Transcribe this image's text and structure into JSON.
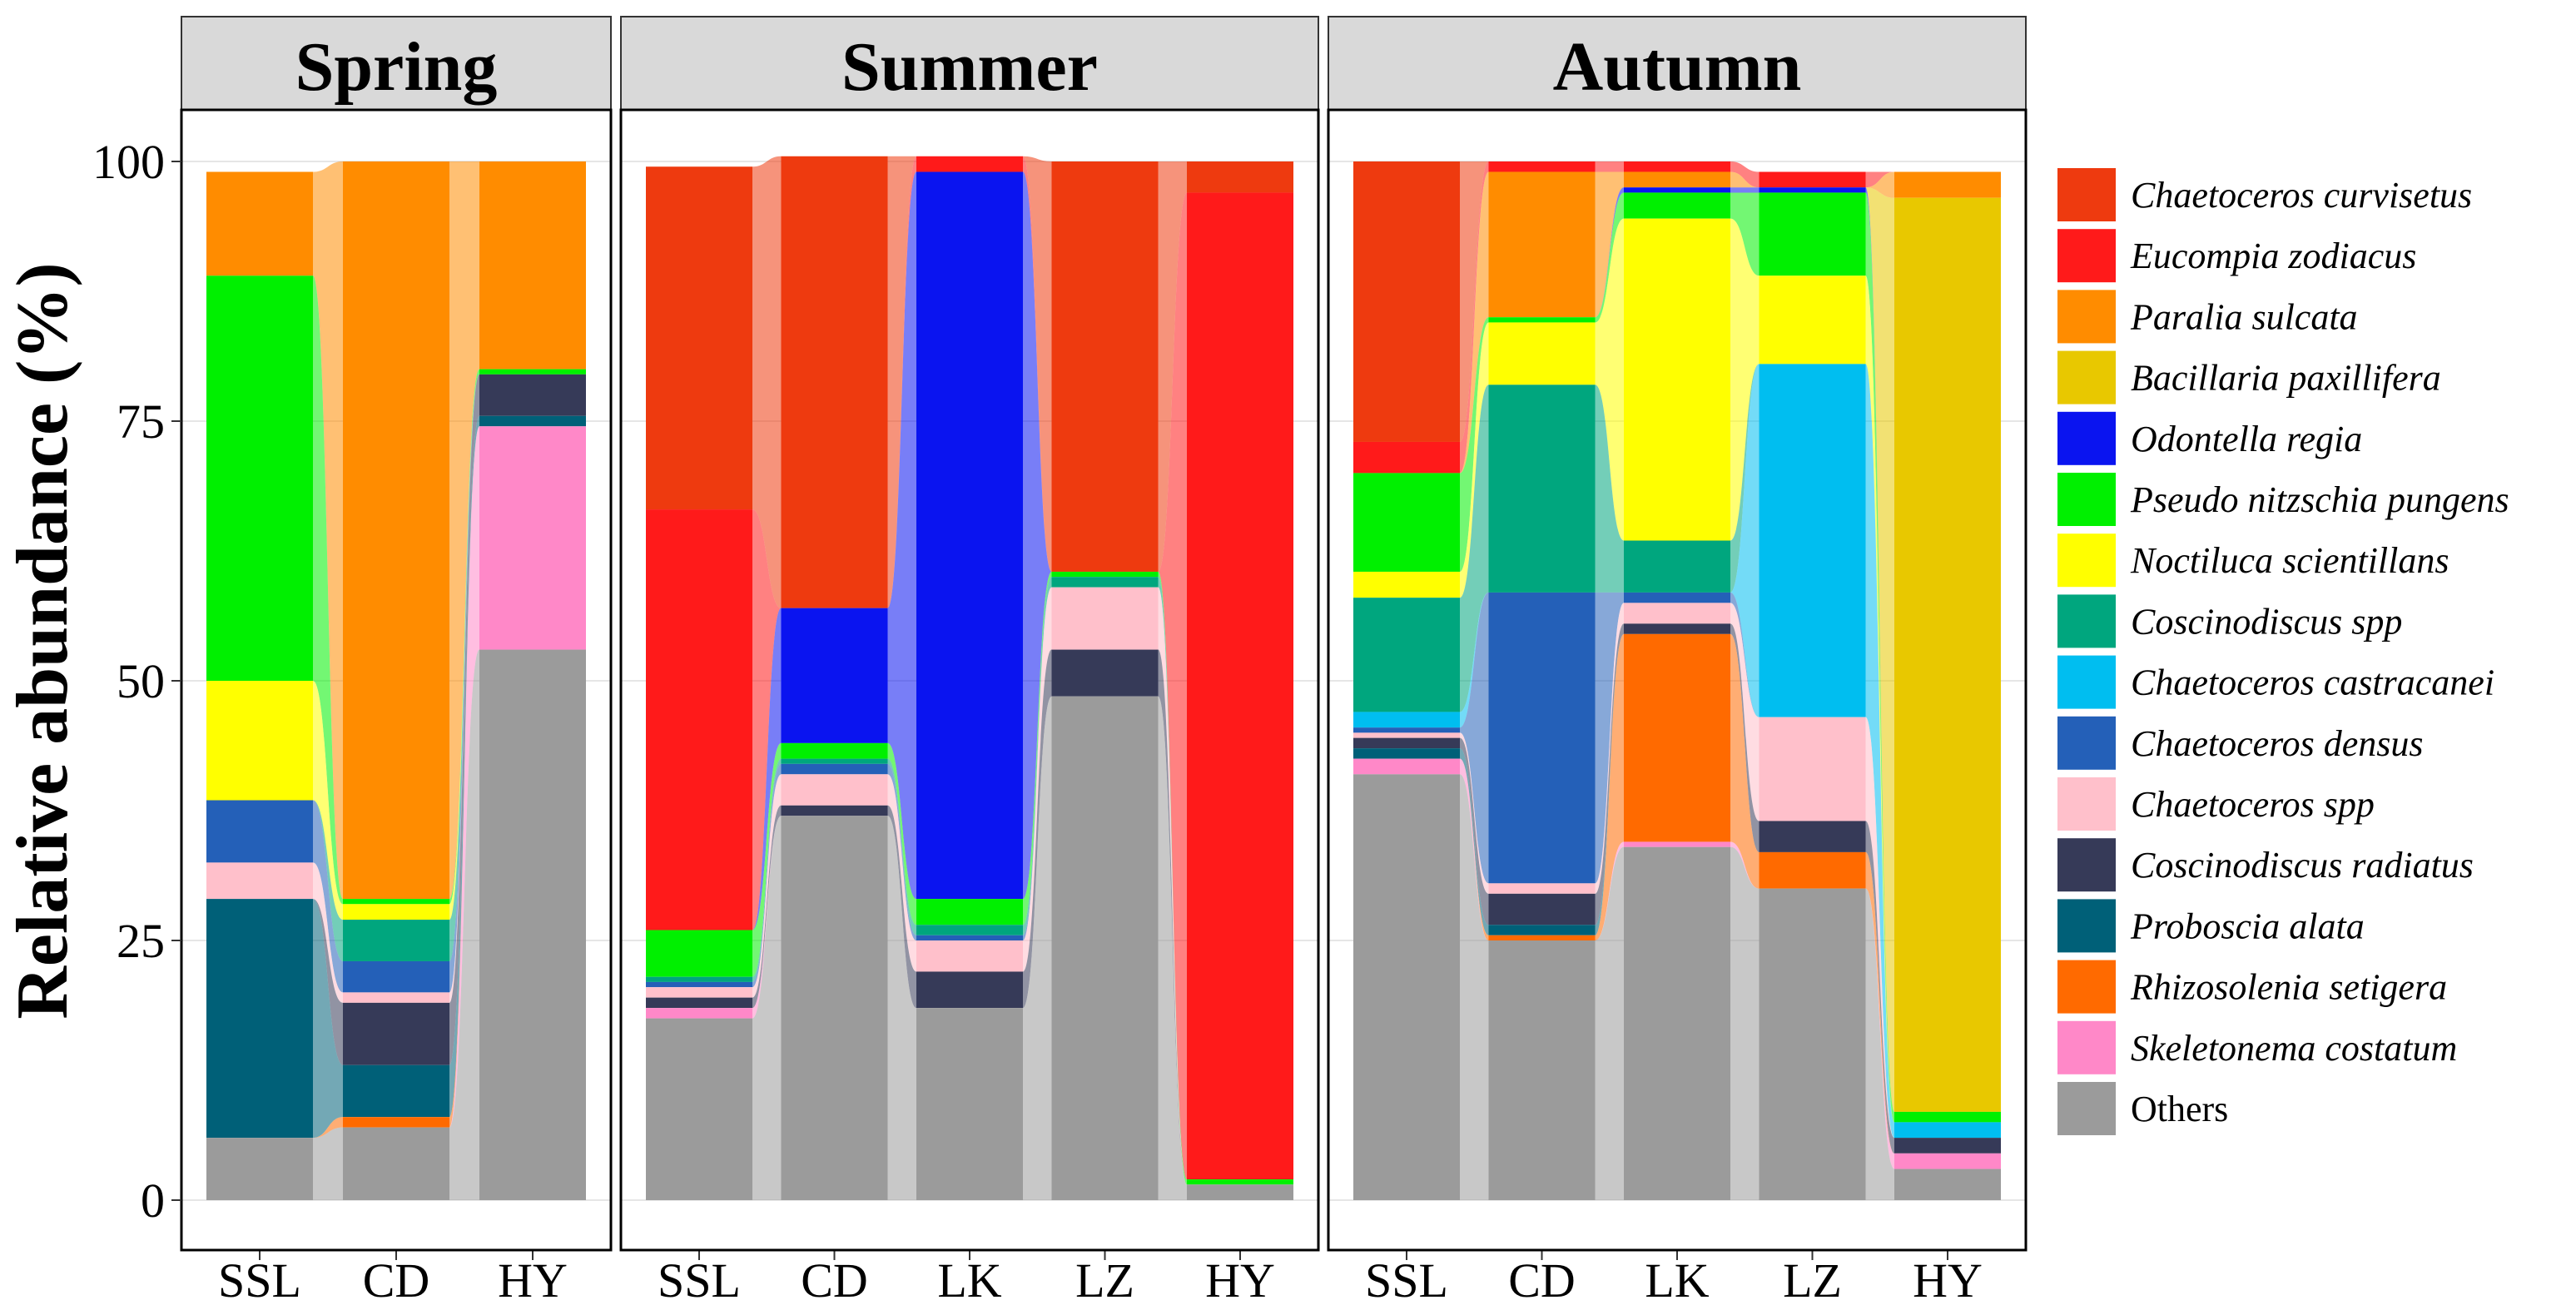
{
  "chart_data": {
    "type": "alluvial-stacked-bar",
    "ylabel": "Relative abundance (%)",
    "ylim": [
      0,
      100
    ],
    "y_ticks": [
      0,
      25,
      50,
      75,
      100
    ],
    "species": [
      {
        "name": "Chaetoceros curvisetus",
        "color": "#EE3A0F",
        "italic": true
      },
      {
        "name": "Eucompia zodiacus",
        "color": "#FF1A1A",
        "italic": true
      },
      {
        "name": "Paralia sulcata",
        "color": "#FF8C00",
        "italic": true
      },
      {
        "name": "Bacillaria paxillifera",
        "color": "#E8C800",
        "italic": true
      },
      {
        "name": "Odontella regia",
        "color": "#0A14F0",
        "italic": true
      },
      {
        "name": "Pseudo nitzschia pungens",
        "color": "#00F000",
        "italic": true
      },
      {
        "name": "Noctiluca scientillans",
        "color": "#FFFF00",
        "italic": true
      },
      {
        "name": "Coscinodiscus spp",
        "color": "#00A67E",
        "italic": true
      },
      {
        "name": "Chaetoceros castracanei",
        "color": "#00BEF0",
        "italic": true
      },
      {
        "name": "Chaetoceros densus",
        "color": "#2460B8",
        "italic": true
      },
      {
        "name": "Chaetoceros spp",
        "color": "#FFC0CB",
        "italic": true
      },
      {
        "name": "Coscinodiscus radiatus",
        "color": "#363A58",
        "italic": true
      },
      {
        "name": "Proboscia alata",
        "color": "#006078",
        "italic": true
      },
      {
        "name": "Rhizosolenia setigera",
        "color": "#FF6A00",
        "italic": true
      },
      {
        "name": "Skeletonema costatum",
        "color": "#FF88C8",
        "italic": true
      },
      {
        "name": "Others",
        "color": "#9B9B9B",
        "italic": false
      }
    ],
    "panels": [
      {
        "title": "Spring",
        "sites": [
          "SSL",
          "CD",
          "HY"
        ],
        "values": [
          [
            0,
            0,
            10,
            0,
            0,
            39,
            11.5,
            0,
            0,
            6,
            3.5,
            0,
            23,
            0,
            0,
            6
          ],
          [
            0,
            0,
            71,
            0,
            0,
            0.5,
            1.5,
            4,
            0,
            3,
            1,
            6,
            5,
            1,
            0,
            7
          ],
          [
            0,
            0,
            20,
            0,
            0,
            0.5,
            0,
            0,
            0,
            0,
            0,
            4,
            1,
            0,
            21.5,
            53
          ]
        ]
      },
      {
        "title": "Summer",
        "sites": [
          "SSL",
          "CD",
          "LK",
          "LZ",
          "HY"
        ],
        "values": [
          [
            33,
            40.5,
            0,
            0,
            0,
            4.5,
            0,
            0.5,
            0,
            0.5,
            1,
            1,
            0,
            0,
            1,
            17.5
          ],
          [
            43.5,
            0,
            0,
            0,
            13,
            1.5,
            0,
            0.5,
            0,
            1,
            3,
            1,
            0,
            0,
            0,
            37
          ],
          [
            0,
            1.5,
            0,
            0,
            70,
            2.5,
            0,
            1,
            0,
            0.5,
            3,
            3.5,
            0,
            0,
            0,
            18.5
          ],
          [
            39.5,
            0,
            0,
            0,
            0,
            0.5,
            0,
            1,
            0,
            0,
            6,
            4.5,
            0,
            0,
            0,
            48.5
          ],
          [
            3,
            95,
            0,
            0,
            0,
            0.5,
            0,
            0,
            0,
            0,
            0,
            0,
            0,
            0,
            0,
            1.5
          ]
        ]
      },
      {
        "title": "Autumn",
        "sites": [
          "SSL",
          "CD",
          "LK",
          "LZ",
          "HY"
        ],
        "values": [
          [
            27,
            3,
            0,
            0,
            0,
            9.5,
            2.5,
            11,
            1.5,
            0.5,
            0.5,
            1,
            1,
            0,
            1.5,
            41
          ],
          [
            0,
            1,
            14,
            0,
            0,
            0.5,
            6,
            20,
            0,
            28,
            1,
            3,
            1,
            0.5,
            0,
            25
          ],
          [
            0,
            1,
            1.5,
            0,
            0.5,
            2.5,
            31,
            5,
            0,
            1,
            2,
            1,
            0,
            20,
            0.5,
            34
          ],
          [
            0,
            1.5,
            0,
            0,
            0.5,
            8,
            8.5,
            0,
            34,
            0,
            10,
            3,
            0,
            3.5,
            0,
            30
          ],
          [
            0,
            0,
            2.5,
            88,
            0,
            1,
            0,
            0,
            1.5,
            0,
            0,
            1.5,
            0,
            0,
            1.5,
            3
          ]
        ]
      }
    ]
  }
}
